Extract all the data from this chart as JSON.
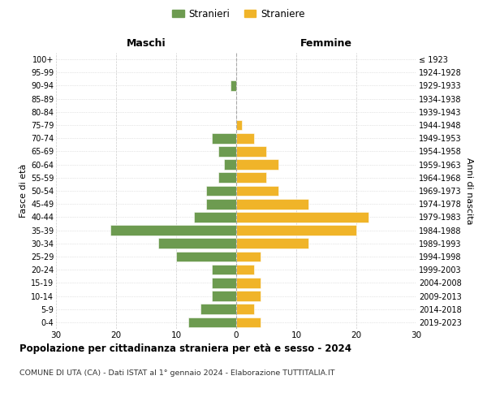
{
  "age_groups": [
    "100+",
    "95-99",
    "90-94",
    "85-89",
    "80-84",
    "75-79",
    "70-74",
    "65-69",
    "60-64",
    "55-59",
    "50-54",
    "45-49",
    "40-44",
    "35-39",
    "30-34",
    "25-29",
    "20-24",
    "15-19",
    "10-14",
    "5-9",
    "0-4"
  ],
  "birth_years": [
    "≤ 1923",
    "1924-1928",
    "1929-1933",
    "1934-1938",
    "1939-1943",
    "1944-1948",
    "1949-1953",
    "1954-1958",
    "1959-1963",
    "1964-1968",
    "1969-1973",
    "1974-1978",
    "1979-1983",
    "1984-1988",
    "1989-1993",
    "1994-1998",
    "1999-2003",
    "2004-2008",
    "2009-2013",
    "2014-2018",
    "2019-2023"
  ],
  "maschi": [
    0,
    0,
    1,
    0,
    0,
    0,
    4,
    3,
    2,
    3,
    5,
    5,
    7,
    21,
    13,
    10,
    4,
    4,
    4,
    6,
    8
  ],
  "femmine": [
    0,
    0,
    0,
    0,
    0,
    1,
    3,
    5,
    7,
    5,
    7,
    12,
    22,
    20,
    12,
    4,
    3,
    4,
    4,
    3,
    4
  ],
  "color_maschi": "#6d9b50",
  "color_femmine": "#f0b429",
  "title": "Popolazione per cittadinanza straniera per età e sesso - 2024",
  "subtitle": "COMUNE DI UTA (CA) - Dati ISTAT al 1° gennaio 2024 - Elaborazione TUTTITALIA.IT",
  "xlabel_left": "Maschi",
  "xlabel_right": "Femmine",
  "ylabel_left": "Fasce di età",
  "ylabel_right": "Anni di nascita",
  "legend_maschi": "Stranieri",
  "legend_femmine": "Straniere",
  "xlim": 30,
  "background_color": "#ffffff",
  "grid_color": "#cccccc"
}
